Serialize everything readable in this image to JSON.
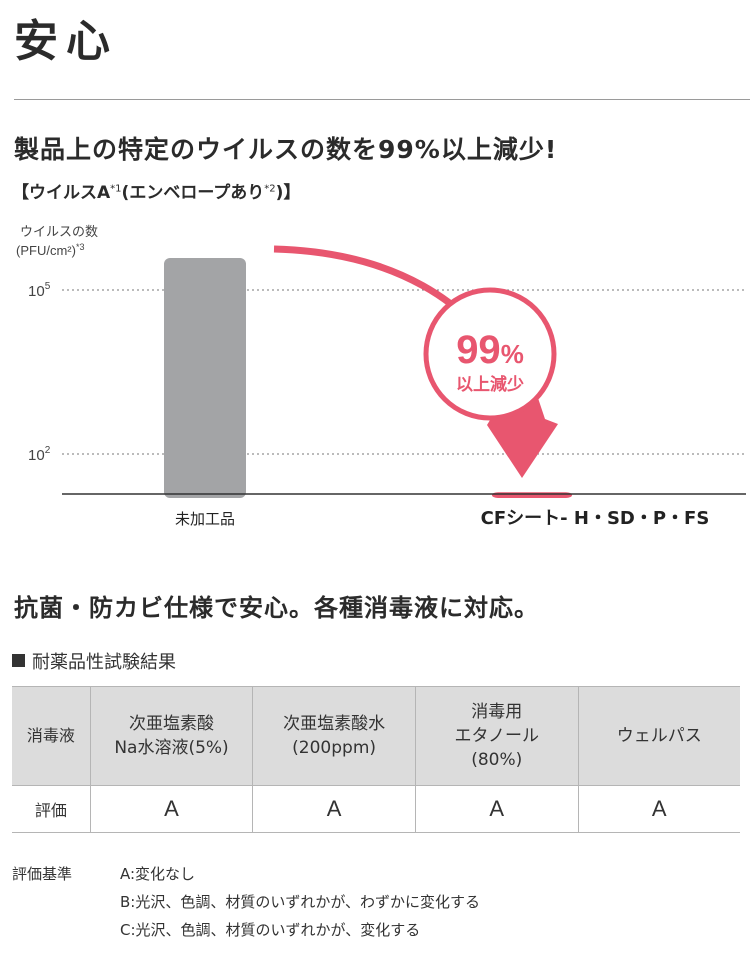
{
  "title": "安心",
  "claim": "製品上の特定のウイルスの数を99%以上減少!",
  "virus_label": {
    "prefix": "【ウイルスA",
    "note1": "*1",
    "middle": "(エンベロープあり",
    "note2": "*2",
    "suffix": ")】"
  },
  "chart_data": {
    "type": "bar",
    "ylabel_line1": "ウイルスの数",
    "ylabel_line2": "(PFU/cm²)",
    "ylabel_note": "*3",
    "yscale": "log",
    "ytick_labels": [
      {
        "base": "10",
        "exp": "5",
        "value": 100000
      },
      {
        "base": "10",
        "exp": "2",
        "value": 100
      }
    ],
    "categories": [
      "未加工品",
      "CFシート- H・SD・P・FS"
    ],
    "values": [
      1000000,
      20
    ],
    "colors": {
      "untreated": "#a3a4a6",
      "treated": "#e8566f"
    },
    "annotation": {
      "big": "99",
      "unit": "%",
      "small": "以上減少"
    },
    "grid": "dotted"
  },
  "section2_title": "抗菌・防カビ仕様で安心。各種消毒液に対応。",
  "table_title": "耐薬品性試験結果",
  "table": {
    "header_first": "消毒液",
    "columns": [
      [
        "次亜塩素酸",
        "Na水溶液(5%)"
      ],
      [
        "次亜塩素酸水",
        "(200ppm)"
      ],
      [
        "消毒用",
        "エタノール",
        "(80%)"
      ],
      [
        "ウェルパス"
      ]
    ],
    "row_label": "評価",
    "ratings": [
      "A",
      "A",
      "A",
      "A"
    ]
  },
  "criteria": {
    "label": "評価基準",
    "items": [
      "A:変化なし",
      "B:光沢、色調、材質のいずれかが、わずかに変化する",
      "C:光沢、色調、材質のいずれかが、変化する"
    ]
  },
  "colors": {
    "accent": "#e8566f",
    "bar_gray": "#a3a4a6",
    "table_header": "#dcdcdc"
  }
}
